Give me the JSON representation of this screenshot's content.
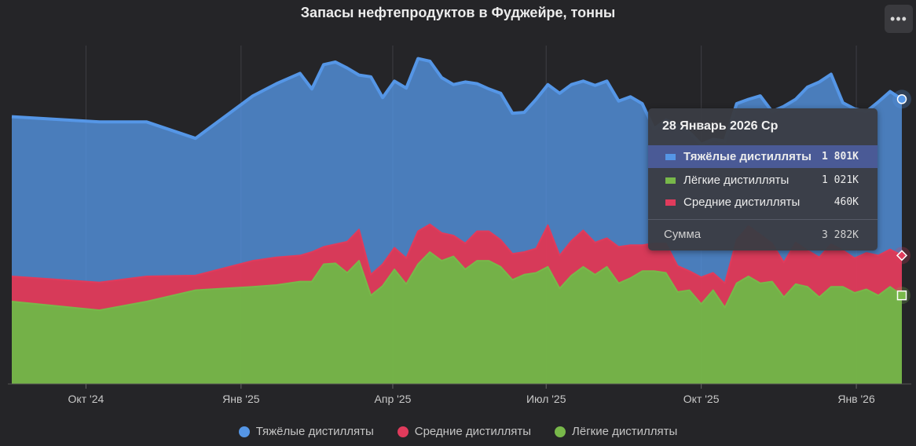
{
  "chart_data": {
    "type": "area",
    "stacked": true,
    "title": "Запасы нефтепродуктов в Фуджейре, тонны",
    "x_axis": {
      "ticks": [
        "Окт '24",
        "Янв '25",
        "Апр '25",
        "Июл '25",
        "Окт '25",
        "Янв '26"
      ],
      "range": [
        "2024-08-18",
        "2026-01-28"
      ]
    },
    "y_axis": {
      "range": [
        0,
        3900000
      ],
      "unit": "тонны"
    },
    "grid": "vertical",
    "legend_position": "bottom",
    "dates": [
      "2024-08-18",
      "2024-10-09",
      "2024-11-06",
      "2024-12-05",
      "2025-01-08",
      "2025-01-22",
      "2025-02-05",
      "2025-02-12",
      "2025-02-19",
      "2025-02-26",
      "2025-03-05",
      "2025-03-12",
      "2025-03-19",
      "2025-03-26",
      "2025-04-02",
      "2025-04-09",
      "2025-04-16",
      "2025-04-23",
      "2025-04-30",
      "2025-05-07",
      "2025-05-14",
      "2025-05-21",
      "2025-05-28",
      "2025-06-04",
      "2025-06-11",
      "2025-06-18",
      "2025-06-25",
      "2025-07-02",
      "2025-07-09",
      "2025-07-16",
      "2025-07-23",
      "2025-07-30",
      "2025-08-06",
      "2025-08-13",
      "2025-08-20",
      "2025-08-27",
      "2025-09-03",
      "2025-09-10",
      "2025-09-17",
      "2025-09-24",
      "2025-10-01",
      "2025-10-08",
      "2025-10-15",
      "2025-10-22",
      "2025-10-29",
      "2025-11-05",
      "2025-11-12",
      "2025-11-19",
      "2025-11-26",
      "2025-12-03",
      "2025-12-10",
      "2025-12-17",
      "2025-12-24",
      "2025-12-31",
      "2026-01-07",
      "2026-01-14",
      "2026-01-21",
      "2026-01-28"
    ],
    "series": [
      {
        "name": "Лёгкие дистилляты",
        "color": "#78b84a",
        "values": [
          950,
          850,
          950,
          1080,
          1120,
          1140,
          1180,
          1180,
          1380,
          1390,
          1280,
          1420,
          1020,
          1130,
          1320,
          1150,
          1380,
          1520,
          1420,
          1470,
          1320,
          1420,
          1420,
          1350,
          1200,
          1260,
          1280,
          1350,
          1100,
          1250,
          1350,
          1260,
          1350,
          1160,
          1220,
          1300,
          1300,
          1280,
          1060,
          1080,
          920,
          1080,
          880,
          1160,
          1240,
          1160,
          1180,
          1000,
          1150,
          1120,
          1000,
          1120,
          1120,
          1050,
          1090,
          1020,
          1120,
          1021
        ]
      },
      {
        "name": "Средние дистилляты",
        "color": "#e03b5c",
        "values": [
          290,
          320,
          290,
          170,
          300,
          320,
          300,
          340,
          200,
          220,
          360,
          360,
          240,
          250,
          250,
          300,
          380,
          320,
          320,
          240,
          300,
          340,
          340,
          310,
          300,
          260,
          280,
          480,
          380,
          400,
          420,
          370,
          330,
          420,
          380,
          300,
          320,
          340,
          300,
          220,
          310,
          200,
          280,
          500,
          580,
          560,
          440,
          400,
          480,
          420,
          460,
          490,
          420,
          400,
          420,
          460,
          430,
          460
        ]
      },
      {
        "name": "Тяжёлые дистилляты",
        "color": "#5596e6",
        "values": [
          1840,
          1850,
          1780,
          1580,
          1900,
          2000,
          2100,
          1880,
          2100,
          2100,
          2000,
          1780,
          2280,
          1920,
          1920,
          1960,
          1990,
          1880,
          1790,
          1740,
          1860,
          1700,
          1640,
          1690,
          1620,
          1610,
          1720,
          1620,
          1870,
          1800,
          1720,
          1810,
          1810,
          1680,
          1710,
          1630,
          1320,
          1420,
          1620,
          1600,
          1530,
          1540,
          1640,
          1570,
          1460,
          1600,
          1520,
          1800,
          1650,
          1880,
          2020,
          1960,
          1700,
          1720,
          1630,
          1770,
          1820,
          1801
        ]
      }
    ],
    "tooltip": {
      "date": "28 Январь 2026 Ср",
      "rows": [
        {
          "name": "Тяжёлые дистилляты",
          "value": "1 801K",
          "color": "#5596e6"
        },
        {
          "name": "Лёгкие дистилляты",
          "value": "1 021K",
          "color": "#78b84a"
        },
        {
          "name": "Средние дистилляты",
          "value": "460K",
          "color": "#e03b5c"
        }
      ],
      "sum_label": "Сумма",
      "sum_value": "3 282K"
    },
    "legend": [
      {
        "name": "Тяжёлые дистилляты",
        "color": "#5596e6"
      },
      {
        "name": "Средние дистилляты",
        "color": "#e03b5c"
      },
      {
        "name": "Лёгкие дистилляты",
        "color": "#78b84a"
      }
    ]
  },
  "menu_button": {
    "label": "•••",
    "icon": "more-horizontal-icon"
  }
}
